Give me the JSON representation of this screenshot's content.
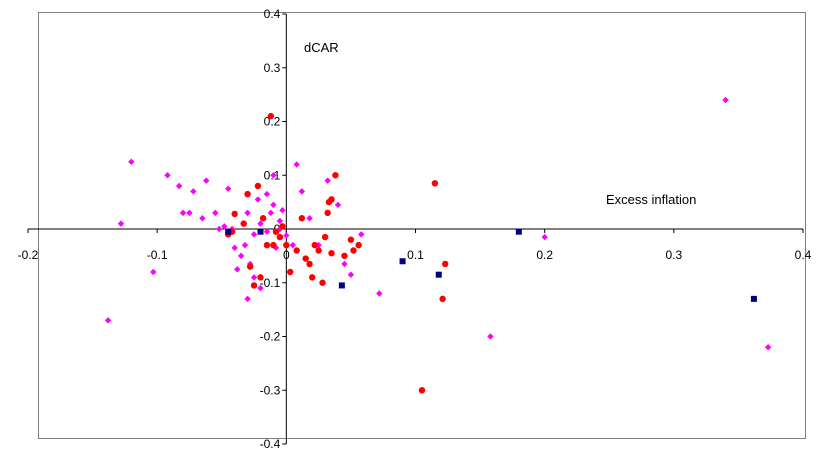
{
  "chart_data": {
    "type": "scatter",
    "annotations": [
      "dCAR",
      "Excess inflation"
    ],
    "xlim": [
      -0.2,
      0.4
    ],
    "ylim": [
      -0.4,
      0.4
    ],
    "x_ticks": [
      -0.2,
      -0.1,
      0,
      0.1,
      0.2,
      0.3,
      0.4
    ],
    "y_ticks": [
      -0.4,
      -0.3,
      -0.2,
      -0.1,
      0,
      0.1,
      0.2,
      0.3,
      0.4
    ],
    "x_tick_labels": [
      "-0.2",
      "-0.1",
      "0",
      "0.1",
      "0.2",
      "0.3",
      "0.4"
    ],
    "y_tick_labels": [
      "-0.4",
      "-0.3",
      "-0.2",
      "-0.1",
      "0",
      "0.1",
      "0.2",
      "0.3",
      "0.4"
    ],
    "grid": false,
    "series": [
      {
        "marker": "diamond",
        "color": "#ff00ff",
        "points": [
          [
            -0.138,
            -0.17
          ],
          [
            -0.128,
            0.01
          ],
          [
            -0.12,
            0.125
          ],
          [
            -0.103,
            -0.08
          ],
          [
            -0.092,
            0.1
          ],
          [
            -0.083,
            0.08
          ],
          [
            -0.08,
            0.03
          ],
          [
            -0.075,
            0.03
          ],
          [
            -0.072,
            0.07
          ],
          [
            -0.065,
            0.02
          ],
          [
            -0.062,
            0.09
          ],
          [
            -0.055,
            0.03
          ],
          [
            -0.052,
            0.0
          ],
          [
            -0.048,
            0.005
          ],
          [
            -0.045,
            0.075
          ],
          [
            -0.042,
            0.0
          ],
          [
            -0.04,
            -0.035
          ],
          [
            -0.038,
            -0.075
          ],
          [
            -0.035,
            -0.05
          ],
          [
            -0.032,
            -0.03
          ],
          [
            -0.03,
            -0.13
          ],
          [
            -0.028,
            -0.065
          ],
          [
            -0.025,
            -0.01
          ],
          [
            -0.022,
            0.055
          ],
          [
            -0.02,
            0.01
          ],
          [
            -0.018,
            0.02
          ],
          [
            -0.015,
            -0.005
          ],
          [
            -0.012,
            0.03
          ],
          [
            -0.01,
            0.045
          ],
          [
            -0.008,
            -0.035
          ],
          [
            -0.005,
            0.0
          ],
          [
            -0.003,
            0.035
          ],
          [
            -0.03,
            0.03
          ],
          [
            -0.025,
            -0.09
          ],
          [
            -0.02,
            -0.11
          ],
          [
            -0.015,
            0.065
          ],
          [
            -0.01,
            0.1
          ],
          [
            -0.005,
            0.015
          ],
          [
            0.0,
            -0.012
          ],
          [
            0.005,
            -0.03
          ],
          [
            0.008,
            0.12
          ],
          [
            0.012,
            0.07
          ],
          [
            0.018,
            0.02
          ],
          [
            0.025,
            -0.03
          ],
          [
            0.032,
            0.09
          ],
          [
            0.04,
            0.045
          ],
          [
            0.045,
            -0.065
          ],
          [
            0.05,
            -0.085
          ],
          [
            0.058,
            -0.01
          ],
          [
            0.072,
            -0.12
          ],
          [
            0.158,
            -0.2
          ],
          [
            0.2,
            -0.015
          ],
          [
            0.34,
            0.24
          ],
          [
            0.373,
            -0.22
          ]
        ]
      },
      {
        "marker": "circle",
        "color": "#ff0000",
        "points": [
          [
            -0.045,
            -0.01
          ],
          [
            -0.042,
            -0.005
          ],
          [
            -0.04,
            0.028
          ],
          [
            -0.033,
            0.01
          ],
          [
            -0.03,
            0.065
          ],
          [
            -0.028,
            -0.07
          ],
          [
            -0.025,
            -0.105
          ],
          [
            -0.022,
            0.08
          ],
          [
            -0.02,
            -0.09
          ],
          [
            -0.018,
            0.02
          ],
          [
            -0.015,
            -0.03
          ],
          [
            -0.012,
            0.21
          ],
          [
            -0.01,
            -0.03
          ],
          [
            -0.008,
            -0.005
          ],
          [
            -0.005,
            -0.015
          ],
          [
            -0.003,
            0.005
          ],
          [
            0.0,
            -0.03
          ],
          [
            0.003,
            -0.08
          ],
          [
            0.008,
            -0.04
          ],
          [
            0.012,
            0.02
          ],
          [
            0.015,
            -0.055
          ],
          [
            0.018,
            -0.065
          ],
          [
            0.02,
            -0.09
          ],
          [
            0.022,
            -0.03
          ],
          [
            0.025,
            -0.04
          ],
          [
            0.028,
            -0.1
          ],
          [
            0.03,
            -0.015
          ],
          [
            0.033,
            0.05
          ],
          [
            0.035,
            0.055
          ],
          [
            0.038,
            0.1
          ],
          [
            0.045,
            -0.05
          ],
          [
            0.05,
            -0.02
          ],
          [
            0.052,
            -0.04
          ],
          [
            0.056,
            -0.03
          ],
          [
            0.105,
            -0.3
          ],
          [
            0.115,
            0.085
          ],
          [
            0.121,
            -0.13
          ],
          [
            0.123,
            -0.065
          ],
          [
            0.035,
            -0.045
          ],
          [
            0.032,
            0.03
          ]
        ]
      },
      {
        "marker": "square",
        "color": "#000080",
        "points": [
          [
            -0.045,
            -0.005
          ],
          [
            -0.02,
            -0.005
          ],
          [
            0.043,
            -0.105
          ],
          [
            0.09,
            -0.06
          ],
          [
            0.118,
            -0.085
          ],
          [
            0.18,
            -0.005
          ],
          [
            0.362,
            -0.13
          ]
        ]
      }
    ]
  }
}
